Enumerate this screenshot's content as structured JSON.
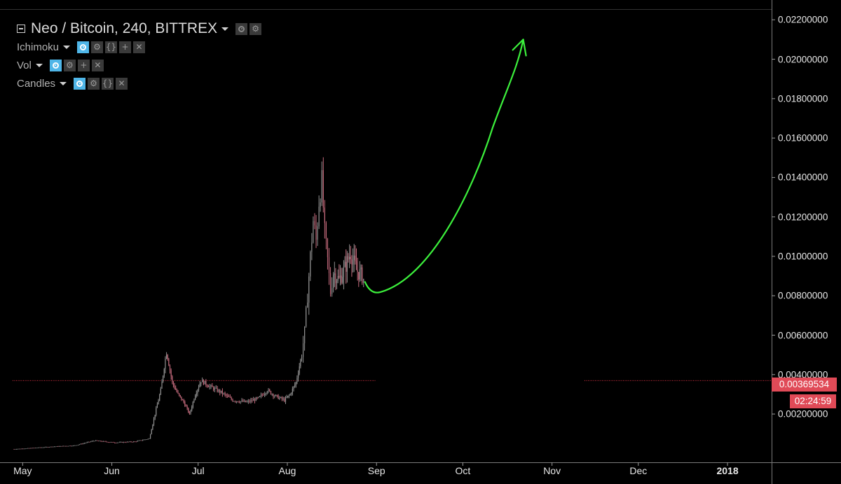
{
  "legend": {
    "title": "Neo / Bitcoin, 240, BITTREX",
    "indicators": [
      {
        "label": "Ichimoku"
      },
      {
        "label": "Vol"
      },
      {
        "label": "Candles"
      }
    ]
  },
  "colors": {
    "background": "#000000",
    "candle_up": "#8f8f8f",
    "candle_down": "#c46a7c",
    "price_line": "#d03040",
    "arrow": "#3cf03c",
    "price_label_bg": "#e04a57"
  },
  "price_label": {
    "value": "0.00369534",
    "countdown": "02:24:59"
  },
  "chart_data": {
    "type": "line",
    "title": "Neo / Bitcoin, 240, BITTREX",
    "xlabel": "",
    "ylabel": "",
    "x_ticks": [
      "May",
      "Jun",
      "Jul",
      "Aug",
      "Sep",
      "Oct",
      "Nov",
      "Dec",
      "2018"
    ],
    "y_ticks": [
      "0.00200000",
      "0.00400000",
      "0.00600000",
      "0.00800000",
      "0.01000000",
      "0.01200000",
      "0.01400000",
      "0.01600000",
      "0.01800000",
      "0.02000000",
      "0.02200000"
    ],
    "y_tick_values": [
      0.002,
      0.004,
      0.006,
      0.008,
      0.01,
      0.012,
      0.014,
      0.016,
      0.018,
      0.02,
      0.022
    ],
    "ylim": [
      -0.0002,
      0.0224
    ],
    "grid": false,
    "current_price": 0.00369534,
    "series": [
      {
        "values": [
          [
            "2017-04-28",
            0.00022
          ],
          [
            "2017-05-05",
            0.00028
          ],
          [
            "2017-05-12",
            0.00035
          ],
          [
            "2017-05-19",
            0.0004
          ],
          [
            "2017-05-26",
            0.00065
          ],
          [
            "2017-06-02",
            0.00055
          ],
          [
            "2017-06-09",
            0.0006
          ],
          [
            "2017-06-14",
            0.00075
          ],
          [
            "2017-06-16",
            0.002
          ],
          [
            "2017-06-18",
            0.0032
          ],
          [
            "2017-06-20",
            0.0052
          ],
          [
            "2017-06-22",
            0.0036
          ],
          [
            "2017-06-24",
            0.003
          ],
          [
            "2017-06-26",
            0.0026
          ],
          [
            "2017-06-28",
            0.002
          ],
          [
            "2017-06-30",
            0.003
          ],
          [
            "2017-07-02",
            0.0037
          ],
          [
            "2017-07-05",
            0.0034
          ],
          [
            "2017-07-09",
            0.0031
          ],
          [
            "2017-07-13",
            0.0027
          ],
          [
            "2017-07-18",
            0.0026
          ],
          [
            "2017-07-22",
            0.0028
          ],
          [
            "2017-07-25",
            0.0032
          ],
          [
            "2017-07-28",
            0.0029
          ],
          [
            "2017-07-31",
            0.0027
          ],
          [
            "2017-08-02",
            0.003
          ],
          [
            "2017-08-04",
            0.0036
          ],
          [
            "2017-08-06",
            0.005
          ],
          [
            "2017-08-07",
            0.0062
          ],
          [
            "2017-08-08",
            0.008
          ],
          [
            "2017-08-09",
            0.01
          ],
          [
            "2017-08-10",
            0.0118
          ],
          [
            "2017-08-11",
            0.0108
          ],
          [
            "2017-08-12",
            0.0128
          ],
          [
            "2017-08-13",
            0.0138
          ],
          [
            "2017-08-14",
            0.0112
          ],
          [
            "2017-08-15",
            0.0098
          ],
          [
            "2017-08-16",
            0.0082
          ],
          [
            "2017-08-17",
            0.0092
          ],
          [
            "2017-08-19",
            0.0088
          ],
          [
            "2017-08-21",
            0.0094
          ],
          [
            "2017-08-23",
            0.0102
          ],
          [
            "2017-08-25",
            0.0093
          ],
          [
            "2017-08-27",
            0.009
          ],
          [
            "2017-08-28",
            0.0087
          ]
        ]
      }
    ],
    "annotation": {
      "type": "arrow",
      "color": "#3cf03c",
      "from": [
        "2017-08-28",
        0.0087
      ],
      "low": [
        "2017-08-30",
        0.0084
      ],
      "to": [
        "2017-10-22",
        0.021
      ]
    }
  }
}
